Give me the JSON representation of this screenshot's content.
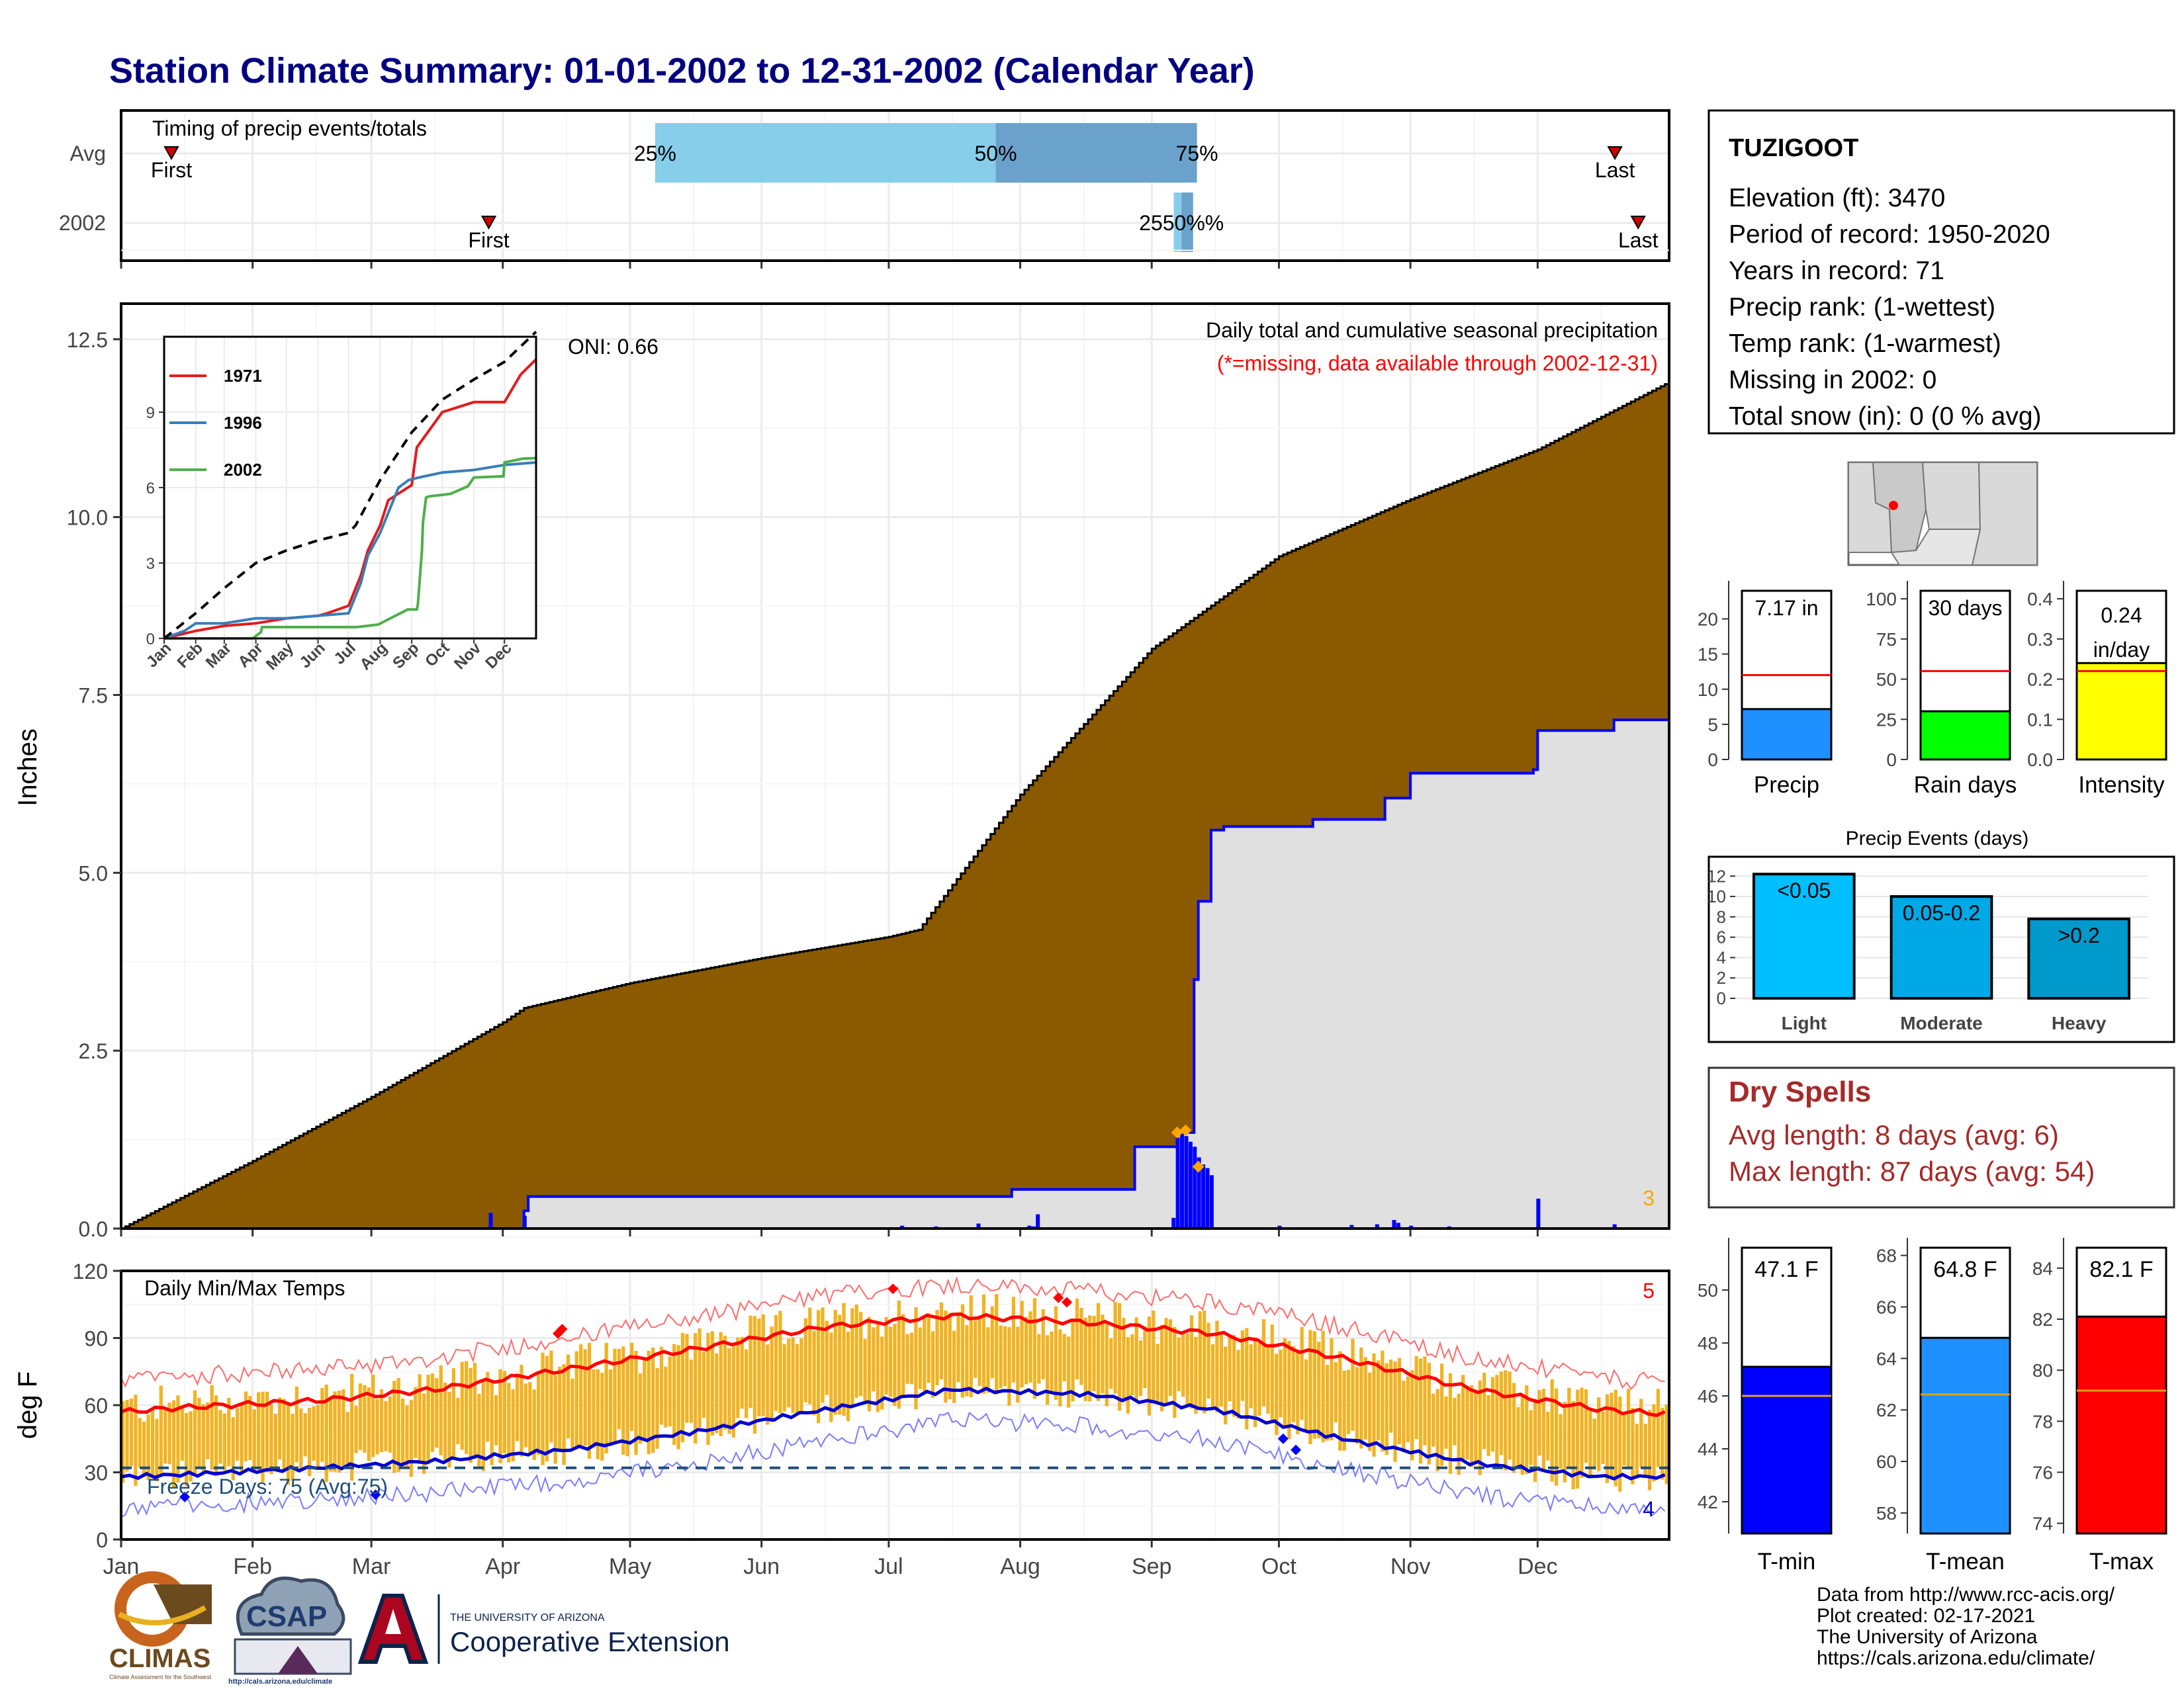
{
  "title": "Station Climate Summary: 01-01-2002 to 12-31-2002 (Calendar Year)",
  "colors": {
    "title": "#000080",
    "cum_avg_fill": "#8B5A00",
    "cum_obs_fill": "#E0E0E0",
    "cum_obs_line": "#0000FF",
    "timing_light": "#87CEEB",
    "timing_dark": "#6AA2CC",
    "temp_bar": "#F0B323",
    "tmax_line": "#FF0000",
    "tmin_line": "#0000CD",
    "freeze_line": "#1F4E79",
    "accent_orange": "#FFA500",
    "dry_spell_text": "#A52A2A",
    "marker_red": "#D00000"
  },
  "chart_data": [
    {
      "id": "timing",
      "type": "bar",
      "title": "Timing of precip events/totals",
      "categories": [
        "Avg",
        "2002"
      ],
      "quartile_labels": [
        "25%",
        "50%",
        "75%"
      ],
      "first_label": "First",
      "last_label": "Last",
      "x_domain_days": [
        0,
        365
      ],
      "avg": {
        "first": 13,
        "q25": 138,
        "q50": 226,
        "q75": 278,
        "last": 386
      },
      "year": {
        "first": 95,
        "q25": 272,
        "q50": 274,
        "q75": 277,
        "last": 392
      },
      "overlap_label": "2550%%"
    },
    {
      "id": "precip",
      "type": "area",
      "ylabel": "Inches",
      "yticks": [
        "0.0",
        "2.5",
        "5.0",
        "7.5",
        "10.0",
        "12.5"
      ],
      "ylim": [
        0,
        13
      ],
      "xlim_days": [
        0,
        365
      ],
      "annotation_title": "Daily total and cumulative seasonal precipitation",
      "annotation_missing": "(*=missing, data available through 2002-12-31)",
      "oni_label": "ONI: 0.66",
      "corner_count": "3",
      "avg_cumulative": {
        "name": "Average cumulative",
        "x": [
          0,
          31,
          59,
          90,
          95,
          120,
          151,
          181,
          188,
          212,
          243,
          273,
          304,
          334,
          365
        ],
        "y": [
          0,
          0.95,
          1.85,
          2.9,
          3.1,
          3.45,
          3.8,
          4.1,
          4.2,
          6.1,
          8.15,
          9.45,
          10.25,
          10.95,
          11.9
        ]
      },
      "obs_cumulative": {
        "name": "2002 cumulative",
        "x": [
          0,
          87,
          95,
          96,
          189,
          210,
          239,
          248,
          249,
          253,
          254,
          257,
          260,
          281,
          298,
          304,
          333,
          334,
          352,
          365
        ],
        "y": [
          0,
          0,
          0.25,
          0.45,
          0.45,
          0.55,
          1.15,
          1.15,
          1.35,
          3.5,
          4.6,
          5.6,
          5.65,
          5.75,
          6.05,
          6.4,
          6.45,
          7.0,
          7.15,
          7.17
        ]
      },
      "daily_precip": {
        "x": [
          87,
          95,
          184,
          192,
          202,
          214,
          215,
          216,
          248,
          249,
          250,
          251,
          252,
          253,
          254,
          255,
          256,
          257,
          273,
          290,
          296,
          300,
          301,
          304,
          313,
          334,
          352
        ],
        "y": [
          0.22,
          0.18,
          0.04,
          0.03,
          0.07,
          0.04,
          0.03,
          0.2,
          0.15,
          1.28,
          1.35,
          1.3,
          1.22,
          1.15,
          1.0,
          0.9,
          0.85,
          0.75,
          0.04,
          0.05,
          0.06,
          0.12,
          0.08,
          0.04,
          0.03,
          0.42,
          0.06
        ]
      },
      "missing_or_extreme_marks": {
        "x": [
          249,
          251,
          254
        ],
        "y": [
          1.35,
          1.38,
          0.87
        ]
      }
    },
    {
      "id": "inset",
      "type": "line",
      "series": [
        {
          "name": "1971",
          "color": "#E41A1C",
          "x": [
            0,
            31,
            59,
            90,
            120,
            151,
            160,
            181,
            193,
            200,
            212,
            220,
            243,
            248,
            273,
            304,
            334,
            350,
            365
          ],
          "y": [
            0,
            0.3,
            0.5,
            0.6,
            0.8,
            0.9,
            1.0,
            1.3,
            2.5,
            3.5,
            4.5,
            5.5,
            6.1,
            7.6,
            9.0,
            9.4,
            9.4,
            10.5,
            11.1
          ]
        },
        {
          "name": "1996",
          "color": "#377EB8",
          "x": [
            0,
            20,
            31,
            59,
            90,
            120,
            151,
            181,
            193,
            200,
            212,
            220,
            230,
            240,
            250,
            273,
            304,
            334,
            365
          ],
          "y": [
            0,
            0.3,
            0.6,
            0.6,
            0.8,
            0.8,
            0.9,
            1.0,
            2.2,
            3.3,
            4.2,
            5.0,
            6.0,
            6.3,
            6.4,
            6.6,
            6.7,
            6.9,
            7.0
          ]
        },
        {
          "name": "2002",
          "color": "#4DAF4A",
          "x": [
            0,
            87,
            95,
            96,
            189,
            210,
            239,
            248,
            249,
            253,
            254,
            257,
            260,
            281,
            298,
            304,
            333,
            334,
            352,
            365
          ],
          "y": [
            0,
            0,
            0.25,
            0.45,
            0.45,
            0.55,
            1.15,
            1.15,
            1.35,
            3.5,
            4.6,
            5.6,
            5.65,
            5.75,
            6.05,
            6.4,
            6.45,
            7.0,
            7.15,
            7.17
          ]
        },
        {
          "name": "Average",
          "color": "#000000",
          "dashed": true,
          "x": [
            0,
            31,
            59,
            90,
            120,
            151,
            181,
            188,
            212,
            243,
            273,
            304,
            334,
            365
          ],
          "y": [
            0,
            1.0,
            2.0,
            3.0,
            3.5,
            3.9,
            4.2,
            4.5,
            6.3,
            8.2,
            9.5,
            10.3,
            11.0,
            12.2
          ]
        }
      ],
      "yticks": [
        "0",
        "3",
        "6",
        "9"
      ],
      "ylim": [
        0,
        12
      ],
      "month_labels": [
        "Jan",
        "Feb",
        "Mar",
        "Apr",
        "May",
        "Jun",
        "Jul",
        "Aug",
        "Sep",
        "Oct",
        "Nov",
        "Dec"
      ]
    },
    {
      "id": "temps",
      "type": "bar",
      "title": "Daily Min/Max Temps",
      "ylabel": "deg F",
      "yticks": [
        "0",
        "30",
        "60",
        "90",
        "120"
      ],
      "ylim": [
        0,
        120
      ],
      "freeze_label": "Freeze Days: 75 (Avg:75)",
      "freeze_threshold": 32,
      "record_high_count": "5",
      "record_low_count": "4",
      "month_labels": [
        "Jan",
        "Feb",
        "Mar",
        "Apr",
        "May",
        "Jun",
        "Jul",
        "Aug",
        "Sep",
        "Oct",
        "Nov",
        "Dec"
      ],
      "avg_tmax": {
        "x": [
          0,
          15,
          46,
          74,
          105,
          135,
          166,
          196,
          227,
          258,
          288,
          319,
          349,
          365
        ],
        "y": [
          57,
          59,
          62,
          67,
          76,
          85,
          95,
          100,
          97,
          92,
          81,
          67,
          58,
          56
        ]
      },
      "avg_tmin": {
        "x": [
          0,
          15,
          46,
          74,
          105,
          135,
          166,
          196,
          227,
          258,
          288,
          319,
          349,
          365
        ],
        "y": [
          28,
          29,
          32,
          35,
          40,
          48,
          58,
          67,
          65,
          58,
          45,
          34,
          28,
          28
        ]
      },
      "record_high_marks": {
        "x": [
          103,
          104,
          182,
          221,
          223
        ],
        "y": [
          92,
          94,
          112,
          108,
          106
        ]
      },
      "record_low_marks": {
        "x": [
          15,
          60,
          274,
          277
        ],
        "y": [
          19,
          20,
          45,
          40
        ]
      }
    },
    {
      "id": "precip_totals",
      "type": "bar",
      "categories": [
        "Precip",
        "Rain days",
        "Intensity"
      ],
      "values": [
        7.17,
        30,
        0.24
      ],
      "value_labels": [
        "7.17 in",
        "30 days",
        "0.24 in/day"
      ],
      "averages": [
        12.0,
        55,
        0.22
      ],
      "ylims": [
        [
          0,
          24
        ],
        [
          0,
          105
        ],
        [
          0,
          0.42
        ]
      ],
      "yticks": [
        [
          "0",
          "5",
          "10",
          "15",
          "20"
        ],
        [
          "0",
          "25",
          "50",
          "75",
          "100"
        ],
        [
          "0.0",
          "0.1",
          "0.2",
          "0.3",
          "0.4"
        ]
      ]
    },
    {
      "id": "precip_events",
      "type": "bar",
      "title": "Precip Events (days)",
      "categories": [
        "Light",
        "Moderate",
        "Heavy"
      ],
      "bar_labels": [
        "<0.05",
        "0.05-0.2",
        ">0.2"
      ],
      "values": [
        12.2,
        10,
        7.8
      ],
      "yticks": [
        "0",
        "2",
        "4",
        "6",
        "8",
        "10",
        "12"
      ],
      "ylim": [
        0,
        12.8
      ]
    },
    {
      "id": "temp_summary",
      "type": "bar",
      "categories": [
        "T-min",
        "T-mean",
        "T-max"
      ],
      "values": [
        47.1,
        64.8,
        82.1
      ],
      "value_labels": [
        "47.1 F",
        "64.8 F",
        "82.1 F"
      ],
      "averages": [
        46.0,
        62.6,
        79.2
      ],
      "ylims": [
        [
          40.8,
          51.6
        ],
        [
          57.2,
          68.3
        ],
        [
          73.6,
          84.8
        ]
      ],
      "yticks": [
        [
          "42",
          "44",
          "46",
          "48",
          "50"
        ],
        [
          "58",
          "60",
          "62",
          "64",
          "66",
          "68"
        ],
        [
          "74",
          "76",
          "78",
          "80",
          "82",
          "84"
        ]
      ]
    }
  ],
  "station": {
    "name": "TUZIGOOT",
    "elevation": "Elevation (ft): 3470",
    "period": "Period of record: 1950-2020",
    "years": "Years in record: 71",
    "precip_rank": "Precip rank:  (1-wettest)",
    "temp_rank": "Temp rank:  (1-warmest)",
    "missing": "Missing in 2002: 0",
    "snow": "Total snow (in): 0 (0 % avg)"
  },
  "dry_spells": {
    "title": "Dry Spells",
    "avg": "Avg length: 8 days (avg: 6)",
    "max": "Max length: 87 days (avg: 54)"
  },
  "map_icon": "arizona-locator-map",
  "logos": {
    "climas_text": "CLIMAS",
    "climas_sub": "Climate Assessment for the Southwest",
    "csap_text": "CSAP",
    "csap_url": "http://cals.arizona.edu/climate",
    "ua_small": "THE UNIVERSITY OF ARIZONA",
    "ua_big": "Cooperative Extension"
  },
  "footer": {
    "line1": "Data from http://www.rcc-acis.org/",
    "line2": "Plot created: 02-17-2021",
    "line3": "The University of Arizona",
    "line4": "https://cals.arizona.edu/climate/"
  }
}
